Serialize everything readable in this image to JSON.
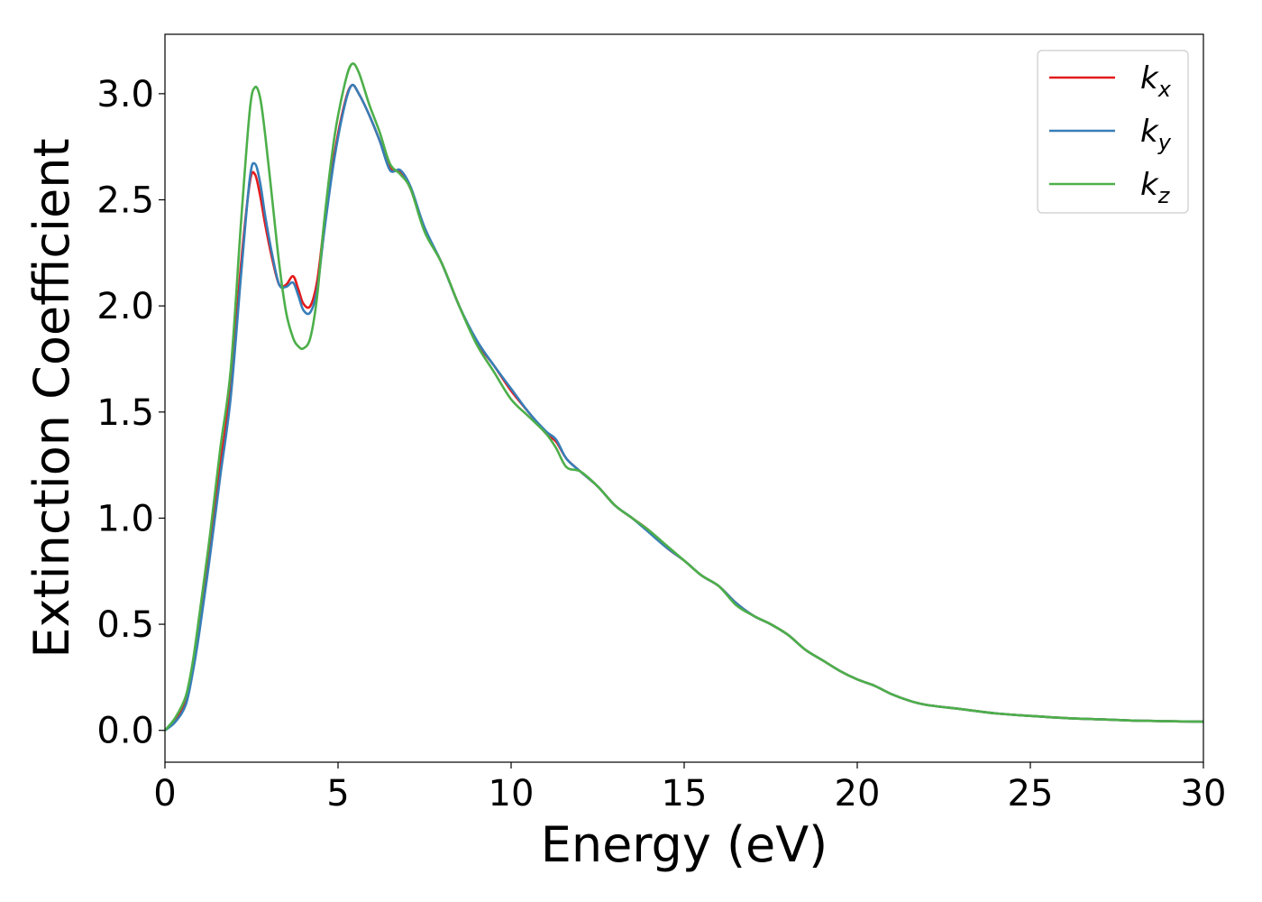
{
  "chart_data": {
    "type": "line",
    "title": "",
    "xlabel": "Energy (eV)",
    "ylabel": "Extinction Coefficient",
    "xlim": [
      0,
      30
    ],
    "ylim": [
      -0.15,
      3.28
    ],
    "xticks": [
      0,
      5,
      10,
      15,
      20,
      25,
      30
    ],
    "xtick_labels": [
      "0",
      "5",
      "10",
      "15",
      "20",
      "25",
      "30"
    ],
    "yticks": [
      0.0,
      0.5,
      1.0,
      1.5,
      2.0,
      2.5,
      3.0
    ],
    "ytick_labels": [
      "0.0",
      "0.5",
      "1.0",
      "1.5",
      "2.0",
      "2.5",
      "3.0"
    ],
    "grid": false,
    "legend_position": "top-right",
    "series": [
      {
        "name": "k_x",
        "label_main": "k",
        "label_sub": "x",
        "color": "#e41a1c",
        "x": [
          0,
          0.3,
          0.6,
          0.8,
          1.0,
          1.3,
          1.6,
          1.9,
          2.2,
          2.45,
          2.6,
          2.75,
          2.9,
          3.1,
          3.3,
          3.5,
          3.7,
          3.85,
          4.0,
          4.2,
          4.4,
          4.6,
          4.9,
          5.2,
          5.4,
          5.6,
          5.9,
          6.2,
          6.5,
          6.8,
          7.1,
          7.5,
          8.0,
          8.5,
          9.0,
          9.5,
          10.0,
          10.5,
          11.0,
          11.3,
          11.6,
          12.0,
          12.5,
          13.0,
          13.5,
          14.0,
          14.5,
          15.0,
          15.5,
          16.0,
          16.5,
          17.0,
          17.5,
          18.0,
          18.5,
          19.0,
          19.5,
          20.0,
          20.5,
          21.0,
          21.5,
          22.0,
          23.0,
          24.0,
          25.0,
          26.0,
          27.0,
          28.0,
          29.0,
          30.0
        ],
        "y": [
          0.0,
          0.05,
          0.14,
          0.3,
          0.5,
          0.85,
          1.25,
          1.62,
          2.2,
          2.58,
          2.62,
          2.52,
          2.38,
          2.22,
          2.1,
          2.1,
          2.14,
          2.08,
          2.01,
          2.0,
          2.12,
          2.38,
          2.72,
          2.96,
          3.04,
          3.0,
          2.9,
          2.78,
          2.65,
          2.63,
          2.55,
          2.36,
          2.2,
          2.0,
          1.83,
          1.72,
          1.6,
          1.5,
          1.4,
          1.36,
          1.28,
          1.22,
          1.15,
          1.06,
          1.0,
          0.94,
          0.86,
          0.8,
          0.73,
          0.68,
          0.6,
          0.54,
          0.5,
          0.45,
          0.38,
          0.33,
          0.28,
          0.24,
          0.21,
          0.17,
          0.14,
          0.12,
          0.1,
          0.08,
          0.068,
          0.058,
          0.052,
          0.046,
          0.043,
          0.041
        ]
      },
      {
        "name": "k_y",
        "label_main": "k",
        "label_sub": "y",
        "color": "#377eb8",
        "x": [
          0,
          0.3,
          0.6,
          0.8,
          1.0,
          1.3,
          1.6,
          1.9,
          2.2,
          2.45,
          2.6,
          2.75,
          2.9,
          3.1,
          3.3,
          3.5,
          3.7,
          3.85,
          4.0,
          4.2,
          4.4,
          4.6,
          4.9,
          5.2,
          5.4,
          5.6,
          5.9,
          6.2,
          6.5,
          6.8,
          7.1,
          7.5,
          8.0,
          8.5,
          9.0,
          9.5,
          10.0,
          10.5,
          11.0,
          11.3,
          11.6,
          12.0,
          12.5,
          13.0,
          13.5,
          14.0,
          14.5,
          15.0,
          15.5,
          16.0,
          16.5,
          17.0,
          17.5,
          18.0,
          18.5,
          19.0,
          19.5,
          20.0,
          20.5,
          21.0,
          21.5,
          22.0,
          23.0,
          24.0,
          25.0,
          26.0,
          27.0,
          28.0,
          29.0,
          30.0
        ],
        "y": [
          0.0,
          0.04,
          0.12,
          0.27,
          0.47,
          0.82,
          1.2,
          1.57,
          2.15,
          2.6,
          2.67,
          2.58,
          2.42,
          2.24,
          2.1,
          2.09,
          2.11,
          2.05,
          1.98,
          1.97,
          2.08,
          2.35,
          2.7,
          2.95,
          3.04,
          3.0,
          2.9,
          2.78,
          2.64,
          2.64,
          2.56,
          2.37,
          2.2,
          2.0,
          1.84,
          1.72,
          1.61,
          1.5,
          1.41,
          1.37,
          1.28,
          1.22,
          1.15,
          1.06,
          1.0,
          0.93,
          0.86,
          0.8,
          0.73,
          0.68,
          0.6,
          0.54,
          0.5,
          0.45,
          0.38,
          0.33,
          0.28,
          0.24,
          0.21,
          0.17,
          0.14,
          0.12,
          0.1,
          0.08,
          0.068,
          0.058,
          0.052,
          0.046,
          0.043,
          0.041
        ]
      },
      {
        "name": "k_z",
        "label_main": "k",
        "label_sub": "z",
        "color": "#4daf4a",
        "x": [
          0,
          0.3,
          0.6,
          0.8,
          1.0,
          1.3,
          1.6,
          1.9,
          2.2,
          2.45,
          2.6,
          2.75,
          2.9,
          3.1,
          3.3,
          3.5,
          3.7,
          3.85,
          4.0,
          4.2,
          4.4,
          4.6,
          4.9,
          5.2,
          5.4,
          5.6,
          5.9,
          6.2,
          6.5,
          6.8,
          7.1,
          7.5,
          8.0,
          8.5,
          9.0,
          9.5,
          10.0,
          10.5,
          11.0,
          11.3,
          11.6,
          12.0,
          12.5,
          13.0,
          13.5,
          14.0,
          14.5,
          15.0,
          15.5,
          16.0,
          16.5,
          17.0,
          17.5,
          18.0,
          18.5,
          19.0,
          19.5,
          20.0,
          20.5,
          21.0,
          21.5,
          22.0,
          23.0,
          24.0,
          25.0,
          26.0,
          27.0,
          28.0,
          29.0,
          30.0
        ],
        "y": [
          0.0,
          0.06,
          0.16,
          0.32,
          0.55,
          0.92,
          1.33,
          1.7,
          2.4,
          2.92,
          3.03,
          2.98,
          2.8,
          2.5,
          2.2,
          1.97,
          1.85,
          1.81,
          1.8,
          1.85,
          2.05,
          2.4,
          2.8,
          3.05,
          3.14,
          3.1,
          2.95,
          2.82,
          2.67,
          2.62,
          2.55,
          2.35,
          2.2,
          2.0,
          1.82,
          1.69,
          1.56,
          1.48,
          1.4,
          1.33,
          1.24,
          1.22,
          1.15,
          1.06,
          1.0,
          0.94,
          0.87,
          0.8,
          0.73,
          0.68,
          0.59,
          0.54,
          0.5,
          0.45,
          0.38,
          0.33,
          0.28,
          0.24,
          0.21,
          0.17,
          0.14,
          0.12,
          0.1,
          0.08,
          0.068,
          0.058,
          0.052,
          0.046,
          0.043,
          0.041
        ]
      }
    ]
  }
}
